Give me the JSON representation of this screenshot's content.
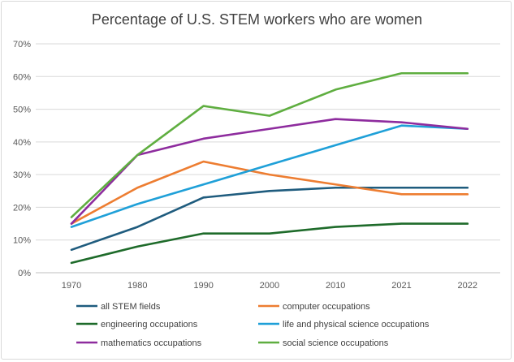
{
  "chart_data": {
    "type": "line",
    "title": "Percentage of U.S. STEM workers who are women",
    "categories": [
      "1970",
      "1980",
      "1990",
      "2000",
      "2010",
      "2021",
      "2022"
    ],
    "ylim": [
      0,
      70
    ],
    "yticks": [
      "0%",
      "10%",
      "20%",
      "30%",
      "40%",
      "50%",
      "60%",
      "70%"
    ],
    "grid": true,
    "legend_position": "bottom",
    "series": [
      {
        "name": "all STEM fields",
        "color": "#1f5c7e",
        "values": [
          7,
          14,
          23,
          25,
          26,
          26,
          26
        ]
      },
      {
        "name": "computer occupations",
        "color": "#ed7d31",
        "values": [
          15,
          26,
          34,
          30,
          27,
          24,
          24
        ]
      },
      {
        "name": "engineering occupations",
        "color": "#1e6b2a",
        "values": [
          3,
          8,
          12,
          12,
          14,
          15,
          15
        ]
      },
      {
        "name": "life and physical science occupations",
        "color": "#1fa0d8",
        "values": [
          14,
          21,
          27,
          33,
          39,
          45,
          44
        ]
      },
      {
        "name": "mathematics occupations",
        "color": "#8e2c9e",
        "values": [
          15,
          36,
          41,
          44,
          47,
          46,
          44
        ]
      },
      {
        "name": "social science occupations",
        "color": "#5fae40",
        "values": [
          17,
          36,
          51,
          48,
          56,
          61,
          61
        ]
      }
    ]
  }
}
